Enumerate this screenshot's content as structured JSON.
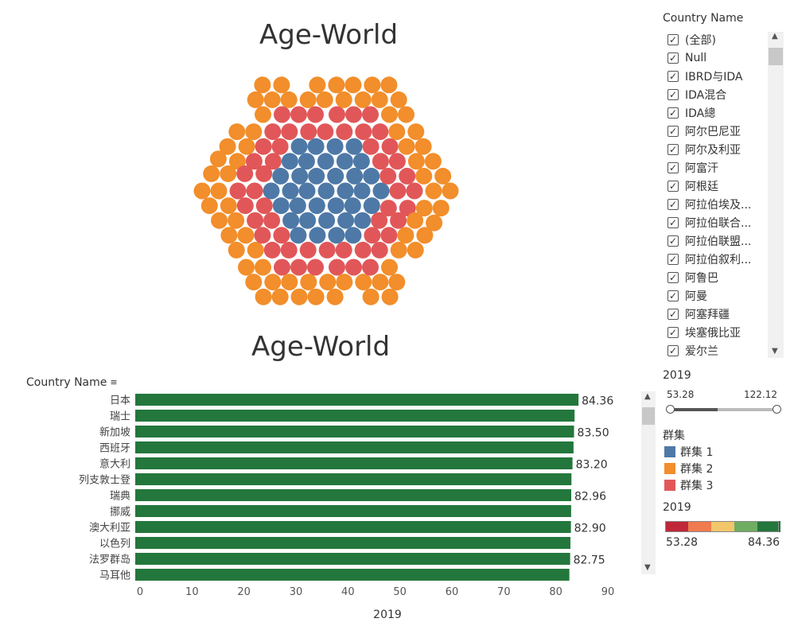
{
  "titles": {
    "top": "Age-World",
    "bottom": "Age-World"
  },
  "colors": {
    "cluster1": "#4e79a7",
    "cluster2": "#f28e2b",
    "cluster3": "#e15759",
    "bar": "#23773c"
  },
  "filter": {
    "title": "Country Name",
    "items": [
      {
        "label": "(全部)",
        "checked": true
      },
      {
        "label": "Null",
        "checked": true
      },
      {
        "label": "IBRD与IDA",
        "checked": true
      },
      {
        "label": "IDA混合",
        "checked": true
      },
      {
        "label": "IDA總",
        "checked": true
      },
      {
        "label": "阿尔巴尼亚",
        "checked": true
      },
      {
        "label": "阿尔及利亚",
        "checked": true
      },
      {
        "label": "阿富汗",
        "checked": true
      },
      {
        "label": "阿根廷",
        "checked": true
      },
      {
        "label": "阿拉伯埃及...",
        "checked": true
      },
      {
        "label": "阿拉伯联合...",
        "checked": true
      },
      {
        "label": "阿拉伯联盟...",
        "checked": true
      },
      {
        "label": "阿拉伯叙利...",
        "checked": true
      },
      {
        "label": "阿鲁巴",
        "checked": true
      },
      {
        "label": "阿曼",
        "checked": true
      },
      {
        "label": "阿塞拜疆",
        "checked": true
      },
      {
        "label": "埃塞俄比亚",
        "checked": true
      },
      {
        "label": "爱尔兰",
        "checked": true
      }
    ]
  },
  "range": {
    "title": "2019",
    "min": "53.28",
    "max": "122.12",
    "low": 53.28,
    "high": 122.12,
    "sel_low": 53.28,
    "sel_high": 122.12
  },
  "cluster_legend": {
    "title": "群集",
    "items": [
      "群集 1",
      "群集 2",
      "群集 3"
    ]
  },
  "color_legend": {
    "title": "2019",
    "min": "53.28",
    "max": "84.36",
    "colors": [
      "#c0283a",
      "#ef7b4f",
      "#f2c76a",
      "#6fad62",
      "#23773c"
    ]
  },
  "bar_header": "Country Name",
  "chart_data": {
    "type": "bar",
    "orientation": "horizontal",
    "title": "Age-World",
    "ylabel": "Country Name",
    "xlabel": "2019",
    "xlim": [
      0,
      95
    ],
    "xticks": [
      0,
      10,
      20,
      30,
      40,
      50,
      60,
      70,
      80,
      90
    ],
    "categories": [
      "日本",
      "瑞士",
      "新加坡",
      "西班牙",
      "意大利",
      "列支敦士登",
      "瑞典",
      "挪威",
      "澳大利亚",
      "以色列",
      "法罗群岛",
      "马耳他"
    ],
    "values": [
      84.36,
      83.6,
      83.5,
      83.4,
      83.2,
      83.0,
      82.96,
      82.94,
      82.9,
      82.8,
      82.75,
      82.6
    ],
    "labels": [
      "84.36",
      "",
      "83.50",
      "",
      "83.20",
      "",
      "82.96",
      "",
      "82.90",
      "",
      "82.75",
      ""
    ]
  }
}
